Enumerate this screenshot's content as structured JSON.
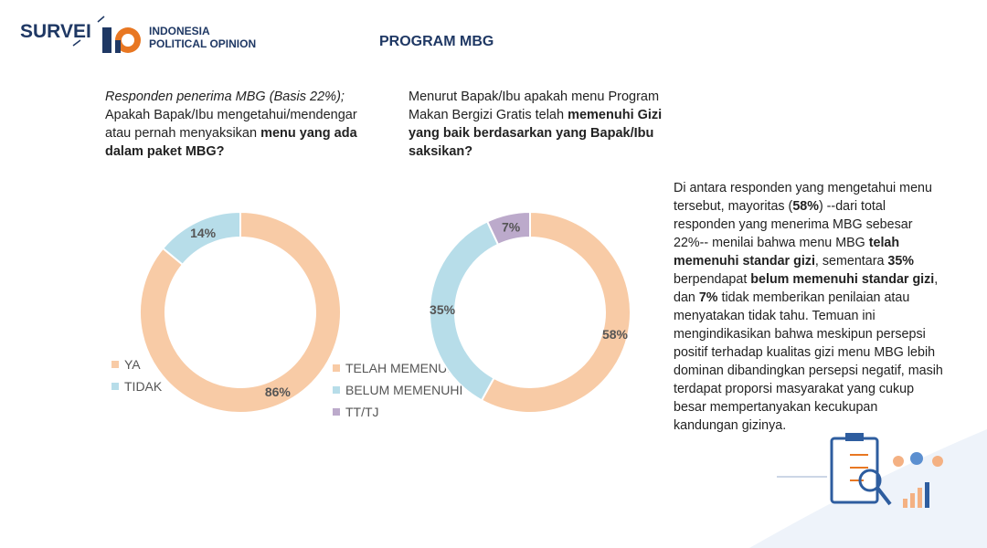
{
  "header": {
    "brand": "SURVEI",
    "org_line1": "INDONESIA",
    "org_line2": "POLITICAL OPINION",
    "title": "PROGRAM MBG"
  },
  "chart_data": [
    {
      "type": "donut",
      "question": [
        {
          "text": "Responden penerima MBG (Basis 22%);",
          "italic": true
        },
        {
          "text": " Apakah Bapak/Ibu mengetahui/mendengar atau pernah menyaksikan "
        },
        {
          "text": "menu yang ada dalam paket MBG?",
          "bold": true
        }
      ],
      "categories": [
        "YA",
        "TIDAK"
      ],
      "values": [
        86,
        14
      ],
      "value_labels": [
        "86%",
        "14%"
      ],
      "colors": [
        "#f8cba6",
        "#b7dde9"
      ]
    },
    {
      "type": "donut",
      "question": [
        {
          "text": "Menurut Bapak/Ibu apakah menu Program Makan Bergizi Gratis telah "
        },
        {
          "text": "memenuhi Gizi yang baik berdasarkan yang Bapak/Ibu saksikan?",
          "bold": true
        }
      ],
      "categories": [
        "TELAH MEMENUHI",
        "BELUM MEMENUHI",
        "TT/TJ"
      ],
      "values": [
        58,
        35,
        7
      ],
      "value_labels": [
        "58%",
        "35%",
        "7%"
      ],
      "colors": [
        "#f8cba6",
        "#b7dde9",
        "#bcaacb"
      ]
    }
  ],
  "narrative": [
    {
      "text": "Di antara responden yang mengetahui menu tersebut, mayoritas ("
    },
    {
      "text": "58%",
      "bold": true
    },
    {
      "text": ") --dari total responden yang menerima MBG sebesar 22%-- menilai bahwa menu MBG "
    },
    {
      "text": "telah memenuhi standar gizi",
      "bold": true
    },
    {
      "text": ", sementara "
    },
    {
      "text": "35%",
      "bold": true
    },
    {
      "text": " berpendapat "
    },
    {
      "text": "belum memenuhi standar gizi",
      "bold": true
    },
    {
      "text": ", dan "
    },
    {
      "text": "7%",
      "bold": true
    },
    {
      "text": " tidak memberikan penilaian atau menyatakan tidak tahu. Temuan ini mengindikasikan bahwa meskipun persepsi positif terhadap kualitas gizi menu MBG lebih dominan dibandingkan persepsi negatif, masih terdapat proporsi masyarakat yang cukup besar mempertanyakan kecukupan kandungan gizinya."
    }
  ]
}
